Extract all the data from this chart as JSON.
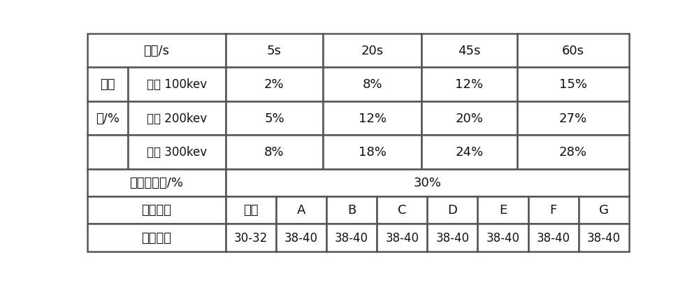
{
  "bg_color": "#ffffff",
  "line_color": "#555555",
  "text_color": "#111111",
  "font_size": 13,
  "header_row": {
    "label": "时间/s",
    "times": [
      "5s",
      "20s",
      "45s",
      "60s"
    ]
  },
  "data_rows": [
    {
      "row_label": "接枝",
      "sub_label": "能量 100kev",
      "values": [
        "2%",
        "8%",
        "12%",
        "15%"
      ]
    },
    {
      "row_label": "率/%",
      "sub_label": "能量 200kev",
      "values": [
        "5%",
        "12%",
        "20%",
        "27%"
      ]
    },
    {
      "row_label": "",
      "sub_label": "能量 300kev",
      "values": [
        "8%",
        "18%",
        "24%",
        "28%"
      ]
    }
  ],
  "conc_row": {
    "label": "丙烯酸浓度/%",
    "value": "30%"
  },
  "film_row": {
    "label": "薄膜位点",
    "points": [
      "原膜",
      "A",
      "B",
      "C",
      "D",
      "E",
      "F",
      "G"
    ]
  },
  "surf_row": {
    "label": "表面张力",
    "values": [
      "30-32",
      "38-40",
      "38-40",
      "38-40",
      "38-40",
      "38-40",
      "38-40",
      "38-40"
    ]
  }
}
